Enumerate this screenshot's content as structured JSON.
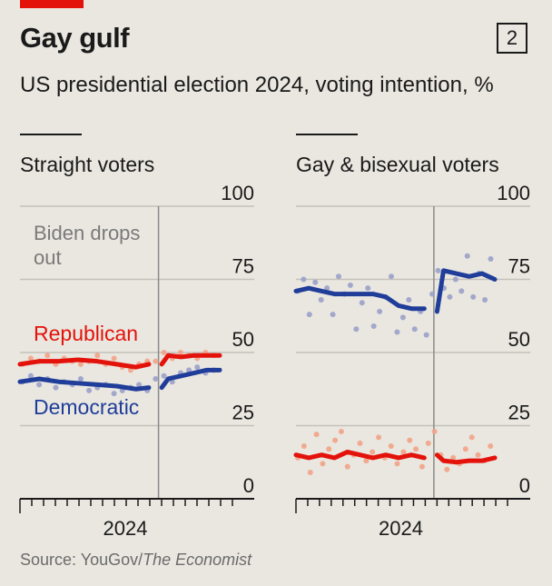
{
  "header": {
    "title": "Gay gulf",
    "chart_number": "2",
    "subtitle": "US presidential election 2024, voting intention, %"
  },
  "source": {
    "prefix": "Source: YouGov/",
    "publication": "The Economist"
  },
  "colors": {
    "republican": "#e3120b",
    "democratic": "#1f3d99",
    "republican_dots": "#f2a387",
    "democratic_dots": "#9aa0c9",
    "annotation": "#7a7a7a",
    "grid": "#c3c1b9"
  },
  "chart_data": [
    {
      "type": "line",
      "title": "Straight voters",
      "xlabel": "2024",
      "ylim": [
        0,
        100
      ],
      "yticks": [
        "0",
        "25",
        "50",
        "75",
        "100"
      ],
      "annotation": {
        "lines": [
          "Biden drops",
          "out"
        ],
        "x": 21
      },
      "x_range": [
        0,
        31
      ],
      "series": [
        {
          "name": "Republican",
          "x": [
            0,
            3,
            6,
            9,
            12,
            15,
            18,
            20,
            22,
            23,
            25,
            27,
            29,
            31
          ],
          "values": [
            46,
            47,
            47,
            47.5,
            47,
            46,
            45,
            46,
            46,
            49,
            48.5,
            49,
            49,
            49
          ],
          "dots": [
            46,
            48,
            47,
            49,
            46,
            48,
            47,
            46,
            47,
            49,
            46,
            48,
            45,
            44,
            46,
            47,
            47,
            50,
            48,
            50,
            49,
            48,
            50,
            49
          ]
        },
        {
          "name": "Democratic",
          "x": [
            0,
            3,
            6,
            9,
            12,
            15,
            18,
            20,
            22,
            23,
            25,
            27,
            29,
            31
          ],
          "values": [
            40,
            41,
            40,
            39.5,
            39,
            38.5,
            37.5,
            38,
            38,
            41,
            42,
            43,
            44,
            44
          ],
          "dots": [
            40,
            42,
            39,
            41,
            38,
            40,
            39,
            41,
            37,
            38,
            39,
            36,
            37,
            38,
            39,
            37,
            41,
            42,
            40,
            43,
            44,
            45,
            43,
            44
          ]
        }
      ]
    },
    {
      "type": "line",
      "title": "Gay & bisexual voters",
      "xlabel": "2024",
      "ylim": [
        0,
        100
      ],
      "yticks": [
        "0",
        "25",
        "50",
        "75",
        "100"
      ],
      "annotation": {
        "lines": [],
        "x": 21
      },
      "x_range": [
        0,
        31
      ],
      "series": [
        {
          "name": "Republican",
          "x": [
            0,
            2,
            4,
            6,
            8,
            10,
            12,
            14,
            16,
            18,
            20,
            22,
            23,
            25,
            27,
            29,
            31
          ],
          "values": [
            15,
            14,
            15,
            14,
            16,
            15,
            14,
            15,
            14,
            15,
            14,
            15,
            13,
            12.5,
            13,
            13,
            14
          ],
          "dots": [
            14,
            18,
            9,
            22,
            12,
            17,
            20,
            23,
            11,
            15,
            19,
            13,
            16,
            21,
            14,
            18,
            12,
            16,
            20,
            17,
            11,
            19,
            23,
            15,
            10,
            14,
            12,
            17,
            21,
            15,
            13,
            18
          ]
        },
        {
          "name": "Democratic",
          "x": [
            0,
            2,
            4,
            6,
            8,
            10,
            12,
            14,
            16,
            18,
            20,
            22,
            23,
            25,
            27,
            29,
            31
          ],
          "values": [
            71,
            72,
            71,
            70,
            70,
            70,
            70,
            69,
            66,
            65,
            65,
            64,
            78,
            77,
            76,
            77,
            75
          ],
          "dots": [
            71,
            75,
            63,
            74,
            68,
            72,
            63,
            76,
            70,
            73,
            58,
            67,
            72,
            59,
            64,
            69,
            76,
            57,
            62,
            68,
            58,
            64,
            56,
            70,
            78,
            72,
            69,
            75,
            71,
            83,
            69,
            77,
            68,
            82
          ]
        }
      ]
    }
  ]
}
